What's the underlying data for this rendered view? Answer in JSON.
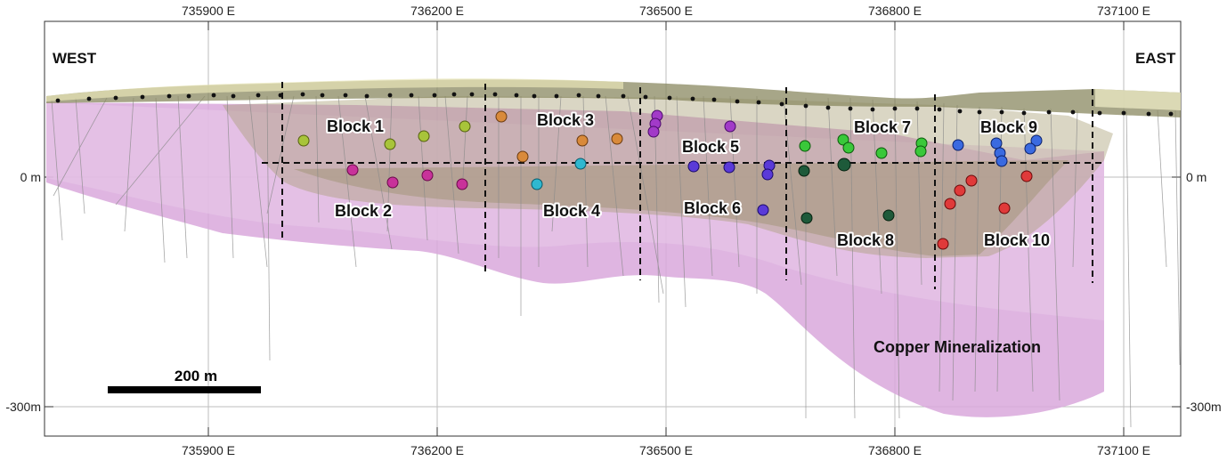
{
  "figure": {
    "top_axis_labels": [
      "735900 E",
      "736200 E",
      "736500 E",
      "736800 E",
      "737100 E"
    ],
    "bottom_axis_labels": [
      "735900 E",
      "736200 E",
      "736500 E",
      "736800 E",
      "737100 E"
    ],
    "left_axis_labels": [
      "0 m",
      "-300m"
    ],
    "right_axis_labels": [
      "0 m",
      "-300m"
    ],
    "west_label": "WEST",
    "east_label": "EAST",
    "scale_bar_label": "200 m",
    "mineralization_label": "Copper Mineralization",
    "blocks": [
      {
        "name": "Block 1",
        "color": "#a8c43a"
      },
      {
        "name": "Block 2",
        "color": "#c8329a"
      },
      {
        "name": "Block 3",
        "color": "#d98a3a"
      },
      {
        "name": "Block 4",
        "color": "#2fb8d0"
      },
      {
        "name": "Block 5",
        "color": "#a23ac8"
      },
      {
        "name": "Block 6",
        "color": "#5a3ad8"
      },
      {
        "name": "Block 7",
        "color": "#3ac83a"
      },
      {
        "name": "Block 8",
        "color": "#1e5a3a"
      },
      {
        "name": "Block 9",
        "color": "#3a6ae0"
      },
      {
        "name": "Block 10",
        "color": "#e03a3a"
      }
    ],
    "colors": {
      "mineralization": "#d9a8dc",
      "mineralization_light": "#e8c8ea",
      "ore_body": "#a89e72",
      "surface": "#8a8860",
      "collar": "#111111"
    }
  }
}
